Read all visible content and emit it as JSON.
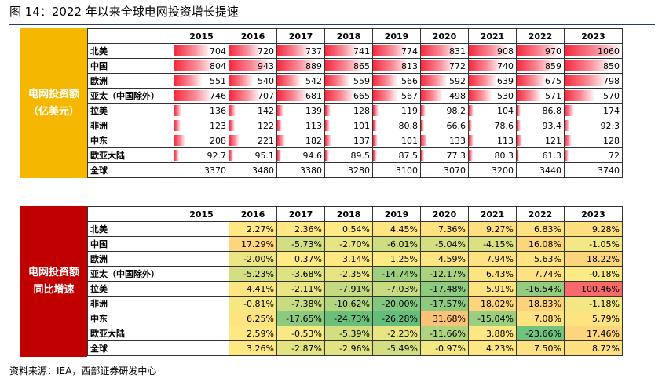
{
  "title": "图 14：2022 年以来全球电网投资增长提速",
  "source": "资料来源：IEA，西部证券研发中心",
  "panel1": {
    "label_line1": "电网投资额",
    "label_line2": "（亿美元）",
    "years": [
      "2015",
      "2016",
      "2017",
      "2018",
      "2019",
      "2020",
      "2021",
      "2022",
      "2023"
    ],
    "bar_color": "#f6283f",
    "bar_scale_max": 1060,
    "rows": [
      {
        "region": "北美",
        "values": [
          "704",
          "720",
          "737",
          "741",
          "774",
          "831",
          "908",
          "970",
          "1060"
        ],
        "bar": true
      },
      {
        "region": "中国",
        "values": [
          "804",
          "943",
          "889",
          "865",
          "813",
          "772",
          "740",
          "859",
          "850"
        ],
        "bar": true
      },
      {
        "region": "欧洲",
        "values": [
          "551",
          "540",
          "542",
          "559",
          "566",
          "592",
          "639",
          "675",
          "798"
        ],
        "bar": true
      },
      {
        "region": "亚太（中国除外）",
        "values": [
          "746",
          "707",
          "681",
          "665",
          "567",
          "498",
          "530",
          "571",
          "570"
        ],
        "bar": true
      },
      {
        "region": "拉美",
        "values": [
          "136",
          "142",
          "139",
          "128",
          "119",
          "98.2",
          "104",
          "86.8",
          "174"
        ],
        "bar": true
      },
      {
        "region": "非洲",
        "values": [
          "123",
          "122",
          "113",
          "101",
          "80.8",
          "66.6",
          "78.6",
          "93.4",
          "92.3"
        ],
        "bar": true
      },
      {
        "region": "中东",
        "values": [
          "208",
          "221",
          "182",
          "137",
          "101",
          "133",
          "113",
          "121",
          "128"
        ],
        "bar": true
      },
      {
        "region": "欧亚大陆",
        "values": [
          "92.7",
          "95.1",
          "94.6",
          "89.5",
          "87.5",
          "77.3",
          "80.3",
          "61.3",
          "72"
        ],
        "bar": true
      },
      {
        "region": "全球",
        "values": [
          "3370",
          "3480",
          "3380",
          "3280",
          "3100",
          "3070",
          "3200",
          "3440",
          "3740"
        ],
        "bar": false
      }
    ]
  },
  "panel2": {
    "label_line1": "电网投资额",
    "label_line2": "同比增速",
    "years": [
      "2015",
      "2016",
      "2017",
      "2018",
      "2019",
      "2020",
      "2021",
      "2022",
      "2023"
    ],
    "color_scale": {
      "low": "#63be7b",
      "mid": "#ffeb84",
      "high": "#f8696b",
      "min": -26.28,
      "max": 100.46
    },
    "rows": [
      {
        "region": "北美",
        "values": [
          "",
          "2.27%",
          "2.36%",
          "0.54%",
          "4.45%",
          "7.36%",
          "9.27%",
          "6.83%",
          "9.28%"
        ]
      },
      {
        "region": "中国",
        "values": [
          "",
          "17.29%",
          "-5.73%",
          "-2.70%",
          "-6.01%",
          "-5.04%",
          "-4.15%",
          "16.08%",
          "-1.05%"
        ]
      },
      {
        "region": "欧洲",
        "values": [
          "",
          "-2.00%",
          "0.37%",
          "3.14%",
          "1.25%",
          "4.59%",
          "7.94%",
          "5.63%",
          "18.22%"
        ]
      },
      {
        "region": "亚太（中国除外）",
        "values": [
          "",
          "-5.23%",
          "-3.68%",
          "-2.35%",
          "-14.74%",
          "-12.17%",
          "6.43%",
          "7.74%",
          "-0.18%"
        ]
      },
      {
        "region": "拉美",
        "values": [
          "",
          "4.41%",
          "-2.11%",
          "-7.91%",
          "-7.03%",
          "-17.48%",
          "5.91%",
          "-16.54%",
          "100.46%"
        ]
      },
      {
        "region": "非洲",
        "values": [
          "",
          "-0.81%",
          "-7.38%",
          "-10.62%",
          "-20.00%",
          "-17.57%",
          "18.02%",
          "18.83%",
          "-1.18%"
        ]
      },
      {
        "region": "中东",
        "values": [
          "",
          "6.25%",
          "-17.65%",
          "-24.73%",
          "-26.28%",
          "31.68%",
          "-15.04%",
          "7.08%",
          "5.79%"
        ]
      },
      {
        "region": "欧亚大陆",
        "values": [
          "",
          "2.59%",
          "-0.53%",
          "-5.39%",
          "-2.23%",
          "-11.66%",
          "3.88%",
          "-23.66%",
          "17.46%"
        ]
      },
      {
        "region": "全球",
        "values": [
          "",
          "3.26%",
          "-2.87%",
          "-2.96%",
          "-5.49%",
          "-0.97%",
          "4.23%",
          "7.50%",
          "8.72%"
        ]
      }
    ]
  }
}
